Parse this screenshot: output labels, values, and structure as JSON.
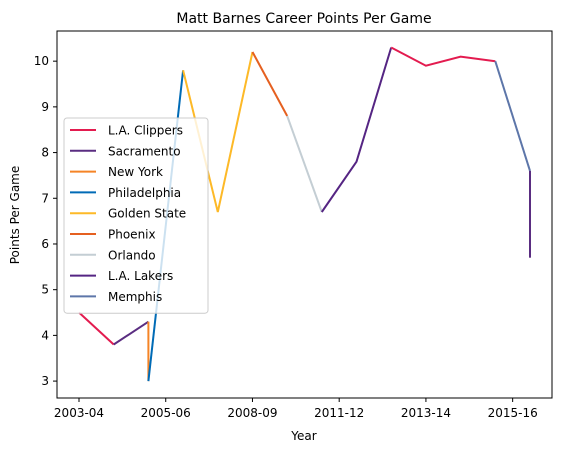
{
  "chart_data": {
    "type": "line",
    "title": "Matt Barnes Career Points Per Game",
    "xlabel": "Year",
    "ylabel": "Points Per Game",
    "x_ticks": [
      "2003-04",
      "2005-06",
      "2008-09",
      "2011-12",
      "2013-14",
      "2015-16"
    ],
    "y_ticks": [
      3,
      4,
      5,
      6,
      7,
      8,
      9,
      10
    ],
    "ylim": [
      2.63,
      10.66
    ],
    "grid": false,
    "legend_position": "center-left",
    "series": [
      {
        "name": "L.A. Clippers",
        "color": "#e31b4f",
        "points": [
          [
            0,
            4.5
          ],
          [
            1,
            3.8
          ]
        ]
      },
      {
        "name": "Sacramento",
        "color": "#5a2d81",
        "points": [
          [
            1,
            3.8
          ],
          [
            2,
            4.3
          ]
        ]
      },
      {
        "name": "New York",
        "color": "#f58426",
        "points": [
          [
            2,
            4.3
          ],
          [
            2,
            3.0
          ]
        ]
      },
      {
        "name": "Philadelphia",
        "color": "#006bb6",
        "points": [
          [
            2,
            3.0
          ],
          [
            3,
            9.8
          ]
        ]
      },
      {
        "name": "Golden State",
        "color": "#fdb927",
        "points": [
          [
            3,
            9.8
          ],
          [
            4,
            6.7
          ],
          [
            5,
            10.2
          ]
        ]
      },
      {
        "name": "Phoenix",
        "color": "#e56020",
        "points": [
          [
            5,
            10.2
          ],
          [
            6,
            8.8
          ]
        ]
      },
      {
        "name": "Orlando",
        "color": "#c4ced4",
        "points": [
          [
            6,
            8.8
          ],
          [
            7,
            6.7
          ]
        ]
      },
      {
        "name": "L.A. Lakers",
        "color": "#552583",
        "points": [
          [
            7,
            6.7
          ],
          [
            8,
            7.8
          ],
          [
            9,
            10.3
          ]
        ]
      },
      {
        "name": "L.A. Clippers",
        "color": "#e31b4f",
        "points": [
          [
            9,
            10.3
          ],
          [
            10,
            9.9
          ],
          [
            11,
            10.1
          ],
          [
            12,
            10.0
          ]
        ]
      },
      {
        "name": "Memphis",
        "color": "#5d76a9",
        "points": [
          [
            12,
            10.0
          ],
          [
            13,
            7.6
          ]
        ]
      },
      {
        "name": "Sacramento",
        "color": "#5a2d81",
        "points": [
          [
            13,
            7.6
          ],
          [
            13,
            5.7
          ]
        ]
      }
    ],
    "legend": [
      {
        "name": "L.A. Clippers",
        "color": "#e31b4f"
      },
      {
        "name": "Sacramento",
        "color": "#5a2d81"
      },
      {
        "name": "New York",
        "color": "#f58426"
      },
      {
        "name": "Philadelphia",
        "color": "#006bb6"
      },
      {
        "name": "Golden State",
        "color": "#fdb927"
      },
      {
        "name": "Phoenix",
        "color": "#e56020"
      },
      {
        "name": "Orlando",
        "color": "#c4ced4"
      },
      {
        "name": "L.A. Lakers",
        "color": "#552583"
      },
      {
        "name": "Memphis",
        "color": "#5d76a9"
      }
    ]
  }
}
